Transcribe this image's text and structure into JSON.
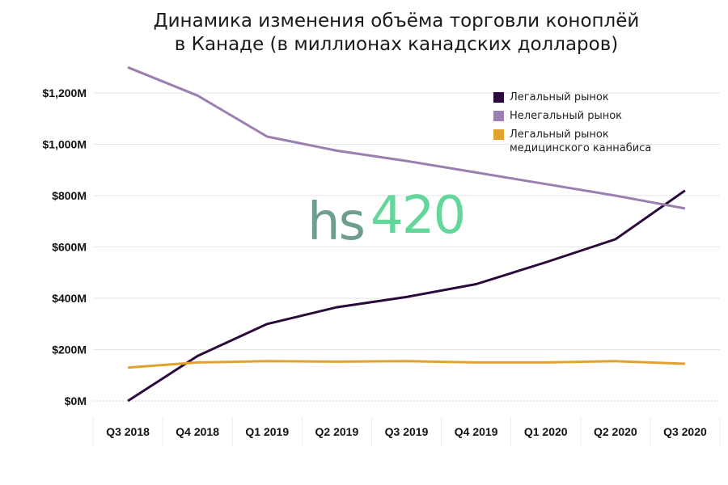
{
  "title_line1": "Динамика изменения объёма торговли коноплёй",
  "title_line2": "в Канаде (в миллионах канадских долларов)",
  "watermark": {
    "text_left": "hs",
    "text_right": "420",
    "color_left": "#6e9e8c",
    "color_right": "#63d69a"
  },
  "colors": {
    "legal": "#2a0a3d",
    "illegal": "#9b7fb0",
    "medical": "#e2a22e",
    "grid": "#e6e6e6"
  },
  "chart_data": {
    "type": "line",
    "categories": [
      "Q3 2018",
      "Q4 2018",
      "Q1 2019",
      "Q2 2019",
      "Q3 2019",
      "Q4 2019",
      "Q1 2020",
      "Q2 2020",
      "Q3 2020"
    ],
    "yticks": [
      "$0M",
      "$200M",
      "$400M",
      "$600M",
      "$800M",
      "$1,000M",
      "$1,200M"
    ],
    "ylim": [
      0,
      1300
    ],
    "grid": true,
    "legend_position": "top-right",
    "series": [
      {
        "name": "Легальный рынок",
        "color": "#2a0a3d",
        "values": [
          0,
          175,
          300,
          365,
          405,
          455,
          540,
          630,
          820
        ]
      },
      {
        "name": "Нелегальный рынок",
        "color": "#9b7fb0",
        "values": [
          1300,
          1190,
          1030,
          975,
          935,
          890,
          845,
          800,
          750
        ]
      },
      {
        "name": "Легальный рынок медицинского каннабиса",
        "color": "#e2a22e",
        "values": [
          130,
          150,
          155,
          153,
          155,
          150,
          150,
          155,
          145
        ]
      }
    ]
  }
}
